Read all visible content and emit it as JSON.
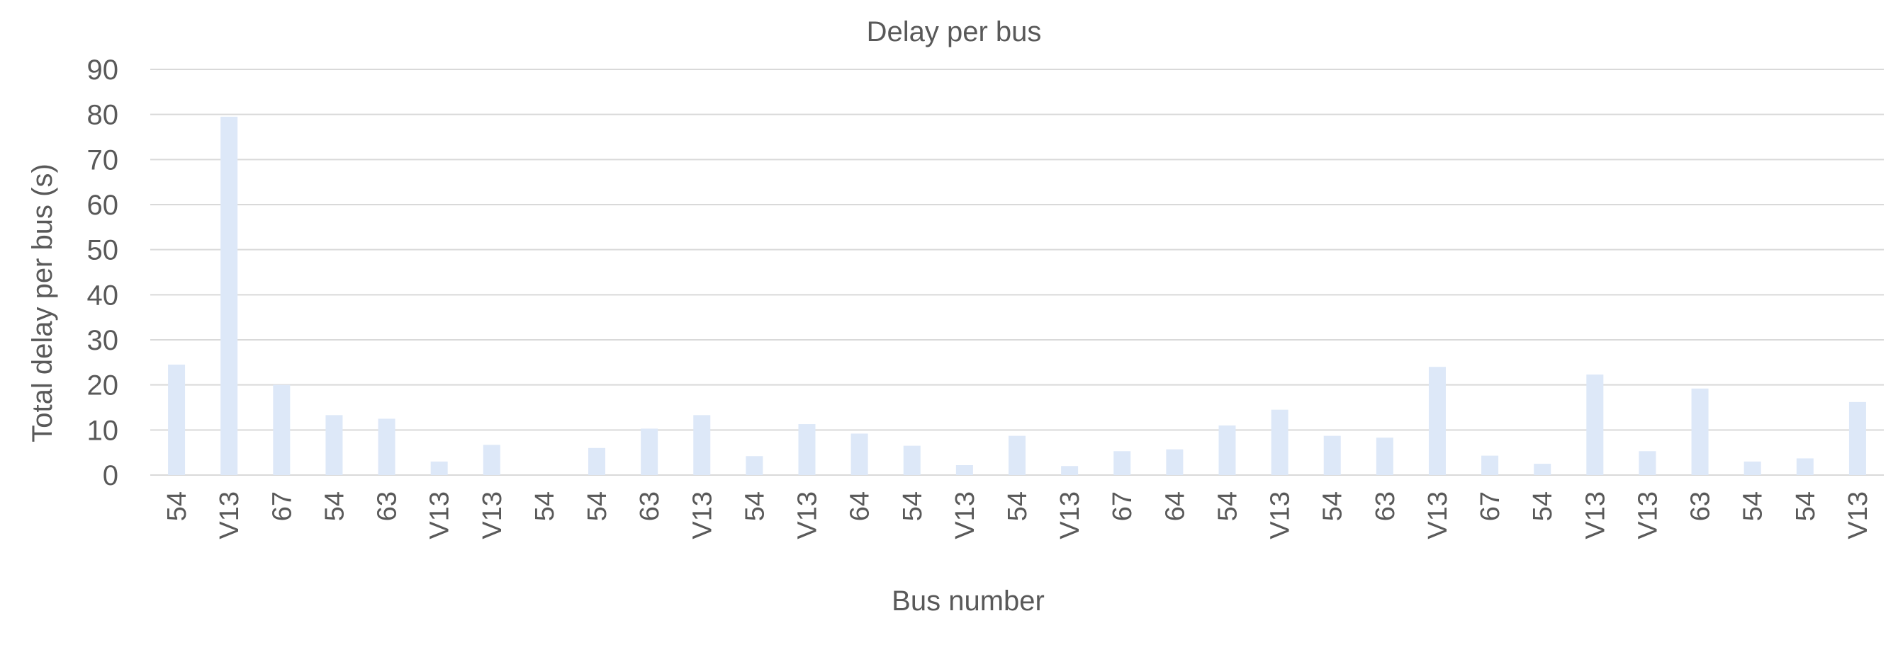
{
  "chart_data": {
    "type": "bar",
    "title": "Delay per bus",
    "xlabel": "Bus number",
    "ylabel": "Total delay per bus (s)",
    "ylim": [
      0,
      90
    ],
    "yticks": [
      0,
      10,
      20,
      30,
      40,
      50,
      60,
      70,
      80,
      90
    ],
    "grid": true,
    "legend": "none",
    "bar_color": "#dde8f8",
    "categories": [
      "54",
      "V13",
      "67",
      "54",
      "63",
      "V13",
      "V13",
      "54",
      "54",
      "63",
      "V13",
      "54",
      "V13",
      "64",
      "54",
      "V13",
      "54",
      "V13",
      "67",
      "64",
      "54",
      "V13",
      "54",
      "63",
      "V13",
      "67",
      "54",
      "V13",
      "V13",
      "63",
      "54",
      "54",
      "V13"
    ],
    "values": [
      24.5,
      79.5,
      20,
      13.3,
      12.5,
      3,
      6.7,
      0,
      6,
      10.3,
      13.3,
      4.2,
      11.3,
      9.2,
      6.5,
      2.2,
      8.7,
      2,
      5.3,
      5.7,
      11,
      14.5,
      8.7,
      8.3,
      24,
      4.3,
      2.5,
      22.3,
      5.3,
      19.2,
      3,
      3.7,
      16.2
    ]
  }
}
